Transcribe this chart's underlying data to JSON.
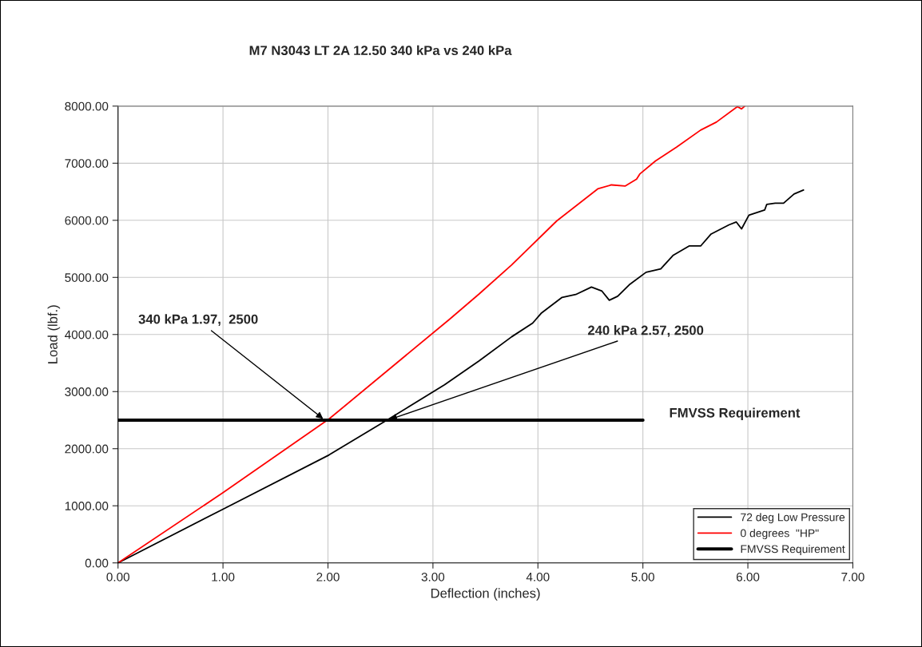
{
  "chart_data": {
    "type": "line",
    "title": "M7 N3043 LT 2A 12.50 340 kPa vs 240 kPa",
    "xlabel": "Deflection (inches)",
    "ylabel": "Load (lbf.)",
    "series": [
      {
        "name": "72 deg Low Pressure",
        "color": "#000000",
        "x": [
          0,
          1.0,
          2.01,
          2.58,
          3.11,
          3.44,
          3.75,
          3.95,
          4.03,
          4.23,
          4.36,
          4.51,
          4.61,
          4.68,
          4.76,
          4.87,
          5.03,
          5.17,
          5.29,
          5.44,
          5.55,
          5.65,
          5.82,
          5.89,
          5.94,
          6.01,
          6.16,
          6.18,
          6.26,
          6.34,
          6.44,
          6.53
        ],
        "values": [
          0,
          940,
          1890,
          2520,
          3120,
          3540,
          3960,
          4200,
          4370,
          4650,
          4700,
          4830,
          4760,
          4600,
          4670,
          4870,
          5090,
          5150,
          5390,
          5550,
          5550,
          5760,
          5920,
          5970,
          5850,
          6090,
          6180,
          6280,
          6300,
          6300,
          6460,
          6530
        ]
      },
      {
        "name": "0 degrees  \"HP\"",
        "color": "#ff0000",
        "x": [
          0,
          1.0,
          2.01,
          3.16,
          3.44,
          3.75,
          4.18,
          4.57,
          4.7,
          4.83,
          4.94,
          4.97,
          5.12,
          5.32,
          5.55,
          5.7,
          5.9,
          5.94,
          5.97
        ],
        "values": [
          0,
          1230,
          2520,
          4270,
          4710,
          5220,
          5990,
          6550,
          6620,
          6600,
          6720,
          6810,
          7040,
          7280,
          7580,
          7720,
          7990,
          7950,
          8000
        ]
      },
      {
        "name": "FMVSS Requirement",
        "color": "#000000",
        "x": [
          0,
          5
        ],
        "values": [
          2500,
          2500
        ]
      }
    ],
    "annotations": [
      {
        "text": "340 kPa 1.97,  2500",
        "x": 1.97,
        "y": 2500
      },
      {
        "text": "240 kPa 2.57, 2500",
        "x": 2.57,
        "y": 2500
      }
    ],
    "xlim": [
      0,
      7
    ],
    "ylim": [
      0,
      8000
    ],
    "xticks": [
      {
        "value": 0,
        "label": "0.00"
      },
      {
        "value": 1,
        "label": "1.00"
      },
      {
        "value": 2,
        "label": "2.00"
      },
      {
        "value": 3,
        "label": "3.00"
      },
      {
        "value": 4,
        "label": "4.00"
      },
      {
        "value": 5,
        "label": "5.00"
      },
      {
        "value": 6,
        "label": "6.00"
      },
      {
        "value": 7,
        "label": "7.00"
      }
    ],
    "yticks": [
      {
        "value": 0,
        "label": "0.00"
      },
      {
        "value": 1000,
        "label": "1000.00"
      },
      {
        "value": 2000,
        "label": "2000.00"
      },
      {
        "value": 3000,
        "label": "3000.00"
      },
      {
        "value": 4000,
        "label": "4000.00"
      },
      {
        "value": 5000,
        "label": "5000.00"
      },
      {
        "value": 6000,
        "label": "6000.00"
      },
      {
        "value": 7000,
        "label": "7000.00"
      },
      {
        "value": 8000,
        "label": "8000.00"
      }
    ],
    "grid": true,
    "legend": "bottom right",
    "line_style": "solid",
    "marker": "none"
  }
}
